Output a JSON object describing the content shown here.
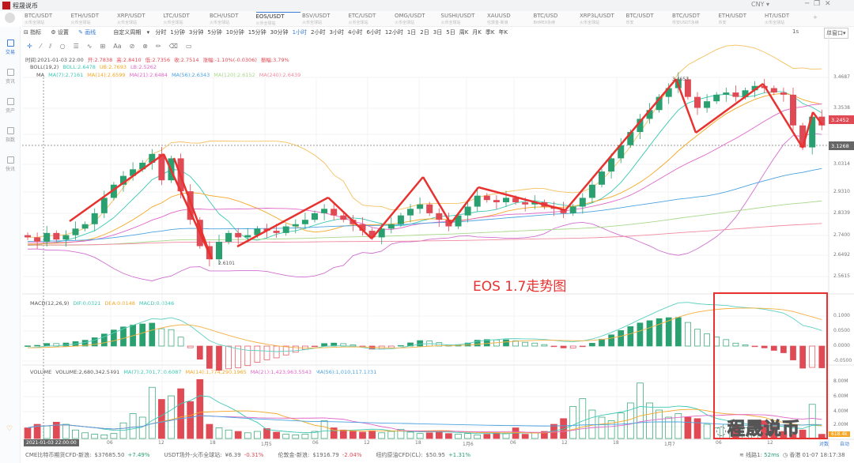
{
  "app": {
    "title": "程晟说币",
    "currency": "CNY"
  },
  "tabs": [
    {
      "name": "BTC/USDT",
      "sub": "火币全球站"
    },
    {
      "name": "ETH/USDT",
      "sub": "火币全球站"
    },
    {
      "name": "XRP/USDT",
      "sub": "火币全球站"
    },
    {
      "name": "LTC/USDT",
      "sub": "火币全球站"
    },
    {
      "name": "BCH/USDT",
      "sub": "火币全球站"
    },
    {
      "name": "EOS/USDT",
      "sub": "火币全球站",
      "active": true
    },
    {
      "name": "BSV/USDT",
      "sub": "火币全球站"
    },
    {
      "name": "ETC/USDT",
      "sub": "火币全球站"
    },
    {
      "name": "OMG/USDT",
      "sub": "火币全球站"
    },
    {
      "name": "SUSHI/USDT",
      "sub": "火币全球站"
    },
    {
      "name": "XAUUSD",
      "sub": "伦敦金·新浪"
    },
    {
      "name": "BTC/USD",
      "sub": "BitMEX永续"
    },
    {
      "name": "XRP3L/USDT",
      "sub": "火币全球站"
    },
    {
      "name": "BTC/USDT",
      "sub": "币安"
    },
    {
      "name": "BTC/USDT",
      "sub": "币安USDT永续"
    },
    {
      "name": "ETH/USDT",
      "sub": "币安"
    },
    {
      "name": "HT/USDT",
      "sub": "火币全球站"
    }
  ],
  "sidebar": [
    {
      "label": "交易",
      "active": true
    },
    {
      "label": "资讯"
    },
    {
      "label": "资产"
    },
    {
      "label": "指数"
    },
    {
      "label": "快讯"
    }
  ],
  "toolbar": {
    "indicator": "指标",
    "settings": "设置",
    "drawing": "画线",
    "custom_period": "自定义周期",
    "timeframes": [
      "分时",
      "1分钟",
      "3分钟",
      "5分钟",
      "10分钟",
      "15分钟",
      "30分钟",
      "1小时",
      "2小时",
      "3小时",
      "4小时",
      "6小时",
      "12小时",
      "1日",
      "2日",
      "3日",
      "5日",
      "周K",
      "月K",
      "季K",
      "年K"
    ],
    "active_timeframe": "1小时",
    "right": {
      "interval": "1s",
      "layout": "单窗口"
    }
  },
  "info": {
    "time": "时间:2021-01-03 22:00",
    "open": "开:2.7838",
    "high": "高:2.8410",
    "low": "低:2.7356",
    "close": "收:2.7514",
    "change": "涨幅:-1.10%(-0.0306)",
    "amplitude": "振幅:3.79%"
  },
  "boll": {
    "label": "BOLL(19,2)",
    "mid": "BOLL:2.6478",
    "ub": "UB:2.7693",
    "lb": "LB:2.5262"
  },
  "ma": {
    "label": "MA",
    "items": [
      "MA(7):2.7161",
      "MA(14):2.6599",
      "MA(21):2.6484",
      "MA(56):2.6343",
      "MA(120):2.6152",
      "MA(240):2.6439"
    ]
  },
  "macd": {
    "label": "MACD(12,26,9)",
    "dif": "DIF:0.0321",
    "dea": "DEA:0.0148",
    "macd": "MACD:0.0346",
    "axis": [
      "0.1000",
      "0.0500",
      "0.0000",
      "-0.0500"
    ]
  },
  "volume": {
    "label": "VOLUME",
    "value": "VOLUME:2,680,342.5491",
    "items": [
      "MA(7):2,701,710.6087",
      "MA(14):1,774,290.1965",
      "MA(21):1,423,963.5543",
      "MA(56):1,010,117.1231"
    ],
    "axis": [
      "8.00M",
      "6.00M",
      "4.00M",
      "2.00M",
      "618.4k"
    ]
  },
  "price_axis": [
    "3.4687",
    "3.3538",
    "3.2452",
    "3.1268",
    "3.0314",
    "2.9310",
    "2.8339",
    "2.7400",
    "2.6492",
    "2.5615"
  ],
  "last_price": "3.2452",
  "cross_price": "3.1268",
  "high_label": "3.4653",
  "low_label": "2.6101",
  "time_axis": [
    "06",
    "12",
    "18",
    "1月5",
    "06",
    "12",
    "18",
    "1月6",
    "06",
    "12",
    "18",
    "1月7",
    "06",
    "12"
  ],
  "cross_time": "2021-01-03 22:00:00",
  "axis_buttons": {
    "log": "对数",
    "auto": "自动"
  },
  "annotation": "EOS 1.7走势图",
  "watermark": "程晟说币",
  "ticker": [
    {
      "name": "CME比特币期货CFD-新浪:",
      "price": "$37685.50",
      "chg": "+7.49%",
      "up": true
    },
    {
      "name": "USDT场外-火币全球站:",
      "price": "¥6.39",
      "chg": "-0.31%",
      "up": false
    },
    {
      "name": "伦敦金-新浪:",
      "price": "$1916.79",
      "chg": "-2.04%",
      "up": false
    },
    {
      "name": "纽约原油CFD(CL):",
      "price": "$50.95",
      "chg": "+1.31%",
      "up": true
    }
  ],
  "status": {
    "line": "线路1:",
    "latency": "52ms",
    "clock": "香港 01-07 18:17:38"
  },
  "colors": {
    "up": "#2aa070",
    "down": "#e04a55",
    "accent": "#3a7bd5",
    "annotation": "#e8322f",
    "ma7": "#3cc8b4",
    "ma14": "#f5a623",
    "ma21": "#e066c8",
    "ma56": "#4aa3e0",
    "ma120": "#a8d88c",
    "ma240": "#f08aa0"
  },
  "chart_data": {
    "type": "candlestick",
    "symbol": "EOS/USDT",
    "interval": "1小时",
    "close": [
      2.74,
      2.72,
      2.76,
      2.73,
      2.75,
      2.78,
      2.8,
      2.85,
      2.92,
      2.98,
      3.02,
      3.05,
      3.08,
      3.12,
      3.0,
      3.1,
      2.95,
      2.82,
      2.7,
      2.64,
      2.72,
      2.76,
      2.74,
      2.75,
      2.78,
      2.77,
      2.76,
      2.79,
      2.8,
      2.82,
      2.85,
      2.87,
      2.84,
      2.82,
      2.8,
      2.77,
      2.74,
      2.78,
      2.8,
      2.84,
      2.87,
      2.89,
      2.85,
      2.82,
      2.79,
      2.84,
      2.88,
      2.93,
      2.91,
      2.9,
      2.92,
      2.9,
      2.89,
      2.9,
      2.88,
      2.87,
      2.85,
      2.88,
      2.92,
      2.98,
      3.04,
      3.1,
      3.16,
      3.22,
      3.28,
      3.32,
      3.38,
      3.42,
      3.46,
      3.38,
      3.33,
      3.36,
      3.39,
      3.4,
      3.38,
      3.41,
      3.43,
      3.42,
      3.4,
      3.39,
      3.25,
      3.15,
      3.29,
      3.25
    ],
    "volume_millions": [
      1.5,
      2.0,
      1.8,
      2.3,
      2.0,
      1.2,
      0.8,
      0.6,
      0.5,
      0.7,
      2.2,
      3.5,
      3.0,
      7.2,
      5.5,
      6.0,
      7.0,
      5.2,
      8.3,
      2.0,
      1.5,
      1.2,
      1.0,
      0.8,
      1.0,
      1.4,
      0.9,
      0.6,
      0.5,
      0.6,
      1.0,
      2.5,
      1.5,
      1.2,
      1.0,
      0.9,
      1.1,
      0.8,
      1.0,
      1.3,
      0.9,
      0.7,
      0.8,
      1.0,
      0.7,
      0.6,
      0.7,
      0.5,
      0.6,
      0.8,
      0.7,
      1.5,
      0.6,
      0.8,
      1.0,
      2.0,
      2.8,
      4.5,
      5.6,
      4.0,
      3.0,
      2.5,
      3.6,
      5.0,
      7.8,
      5.0,
      4.0,
      3.0,
      3.5,
      3.0,
      2.8,
      2.0,
      1.5,
      2.0,
      1.8,
      1.5,
      1.2,
      2.5,
      1.8,
      1.0,
      0.6,
      1.2,
      4.8,
      0.6
    ],
    "ylim": [
      2.5615,
      3.4687
    ]
  }
}
